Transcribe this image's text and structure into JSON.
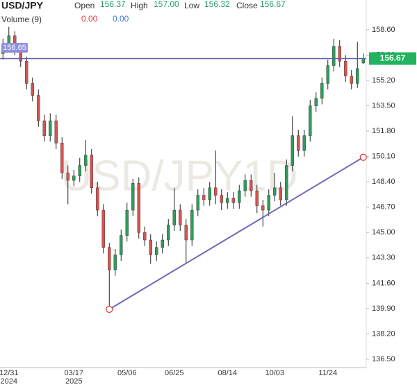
{
  "chart_data": {
    "type": "candlestick",
    "header": {
      "symbol": "USD/JPY",
      "open_label": "Open",
      "open": "156.37",
      "high_label": "High",
      "high": "157.00",
      "low_label": "Low",
      "low": "156.32",
      "close_label": "Close",
      "close": "156.67",
      "volume_label": "Volume (9)",
      "volume_a": "0.00",
      "volume_b": "0.00"
    },
    "watermark": "USD/JPY1D",
    "categories": [
      null,
      "12/31",
      null,
      null,
      null,
      null,
      null,
      null,
      null,
      null,
      null,
      null,
      "03/17",
      null,
      null,
      null,
      null,
      null,
      null,
      null,
      null,
      "05/06",
      null,
      null,
      null,
      null,
      null,
      null,
      null,
      "06/25",
      null,
      null,
      null,
      null,
      null,
      null,
      null,
      null,
      "08/14",
      null,
      null,
      null,
      null,
      null,
      null,
      null,
      "10/03",
      null,
      null,
      null,
      null,
      null,
      null,
      null,
      null,
      "11/24",
      null,
      null,
      null,
      null,
      null,
      null
    ],
    "year_labels": [
      null,
      "2024",
      null,
      null,
      null,
      null,
      null,
      null,
      null,
      null,
      null,
      null,
      "2025",
      null,
      null,
      null,
      null,
      null,
      null,
      null,
      null,
      null,
      null,
      null,
      null,
      null,
      null,
      null,
      null,
      null,
      null,
      null,
      null,
      null,
      null,
      null,
      null,
      null,
      null,
      null,
      null,
      null,
      null,
      null,
      null,
      null,
      null,
      null,
      null,
      null,
      null,
      null,
      null,
      null,
      null,
      null,
      null,
      null,
      null,
      null,
      null,
      null
    ],
    "open": [
      157.0,
      157.5,
      158.2,
      157.3,
      156.5,
      155.0,
      154.2,
      152.5,
      151.5,
      152.5,
      151.0,
      149.0,
      148.5,
      148.8,
      149.5,
      150.2,
      148.0,
      146.5,
      144.0,
      142.5,
      143.5,
      144.8,
      146.5,
      148.3,
      145.0,
      144.5,
      143.5,
      144.0,
      144.5,
      145.5,
      146.5,
      145.5,
      144.5,
      146.5,
      147.5,
      147.2,
      148.0,
      147.5,
      147.0,
      147.3,
      147.0,
      147.8,
      148.5,
      147.8,
      146.8,
      146.5,
      147.5,
      148.0,
      147.2,
      149.5,
      151.5,
      150.5,
      151.5,
      153.5,
      154.0,
      155.0,
      156.2,
      157.5,
      156.5,
      155.5,
      155.0,
      156.37
    ],
    "high": [
      158.0,
      158.8,
      158.5,
      157.6,
      156.8,
      155.4,
      154.6,
      152.9,
      153.0,
      152.9,
      151.4,
      149.5,
      149.2,
      150.0,
      151.2,
      150.6,
      148.4,
      146.9,
      144.3,
      143.9,
      145.2,
      147.0,
      148.6,
      148.7,
      145.4,
      144.9,
      144.4,
      144.9,
      145.9,
      148.0,
      146.9,
      145.9,
      146.9,
      147.9,
      148.0,
      148.4,
      150.5,
      147.9,
      147.7,
      147.7,
      148.2,
      148.9,
      148.9,
      148.2,
      147.2,
      147.9,
      149.0,
      148.4,
      149.9,
      152.8,
      151.9,
      151.9,
      153.9,
      154.4,
      155.4,
      156.6,
      158.0,
      157.9,
      156.9,
      155.9,
      157.8,
      157.0
    ],
    "low": [
      156.6,
      157.1,
      156.9,
      156.1,
      154.6,
      153.8,
      152.1,
      151.1,
      151.1,
      150.6,
      148.6,
      146.9,
      148.1,
      148.4,
      149.1,
      147.6,
      146.1,
      143.6,
      139.9,
      142.1,
      143.1,
      144.4,
      146.1,
      144.6,
      144.1,
      142.9,
      143.1,
      143.6,
      144.1,
      145.1,
      145.1,
      142.9,
      144.1,
      146.1,
      146.8,
      146.8,
      146.9,
      146.5,
      146.6,
      146.6,
      146.6,
      147.4,
      147.4,
      146.3,
      145.4,
      146.1,
      147.1,
      146.8,
      146.8,
      149.1,
      150.1,
      150.1,
      151.1,
      153.1,
      153.6,
      154.6,
      155.8,
      156.1,
      155.1,
      154.6,
      154.7,
      156.32
    ],
    "close": [
      157.5,
      158.2,
      157.3,
      156.5,
      155.0,
      154.2,
      152.5,
      151.5,
      152.5,
      151.0,
      149.0,
      148.5,
      148.8,
      149.5,
      150.2,
      148.0,
      146.5,
      144.0,
      142.5,
      143.5,
      144.8,
      146.5,
      148.3,
      145.0,
      144.5,
      143.5,
      144.0,
      144.5,
      145.5,
      146.5,
      145.5,
      144.5,
      146.5,
      147.5,
      147.2,
      148.0,
      147.5,
      147.0,
      147.3,
      147.0,
      147.8,
      148.5,
      147.8,
      146.8,
      146.5,
      147.5,
      148.0,
      147.2,
      149.5,
      151.5,
      150.5,
      151.5,
      153.5,
      154.0,
      155.0,
      156.2,
      157.5,
      156.5,
      155.5,
      155.0,
      156.0,
      156.67
    ],
    "up_color": "#2e9d5b",
    "down_color": "#d9534f",
    "wick_color": "#222222",
    "ylim": [
      135.94,
      160.6
    ],
    "yticks": [
      {
        "value": 136.5,
        "label": "136.50"
      },
      {
        "value": 138.2,
        "label": "138.20"
      },
      {
        "value": 139.9,
        "label": "139.90"
      },
      {
        "value": 141.6,
        "label": "141.60"
      },
      {
        "value": 143.3,
        "label": "143.30"
      },
      {
        "value": 145.0,
        "label": "145.00"
      },
      {
        "value": 146.7,
        "label": "146.70"
      },
      {
        "value": 148.4,
        "label": "148.40"
      },
      {
        "value": 150.1,
        "label": "150.10"
      },
      {
        "value": 151.8,
        "label": "151.80"
      },
      {
        "value": 153.5,
        "label": "153.50"
      },
      {
        "value": 155.2,
        "label": "155.20"
      },
      {
        "value": 156.9,
        "label": "156.90"
      },
      {
        "value": 158.6,
        "label": "158.60"
      }
    ],
    "grid": false,
    "price_line": {
      "value": 156.67,
      "label": "156.67",
      "color": "#5b5ea6",
      "label_color": "#22b35e"
    },
    "cursor_label": {
      "value": 156.65,
      "label": "156.65",
      "color": "#8f8fe0"
    },
    "trendline": {
      "points": [
        {
          "index": 18,
          "value": 139.85
        },
        {
          "index": 61,
          "value": 150.05
        }
      ],
      "color": "#7068b8",
      "marker_color": "#e03030"
    }
  }
}
